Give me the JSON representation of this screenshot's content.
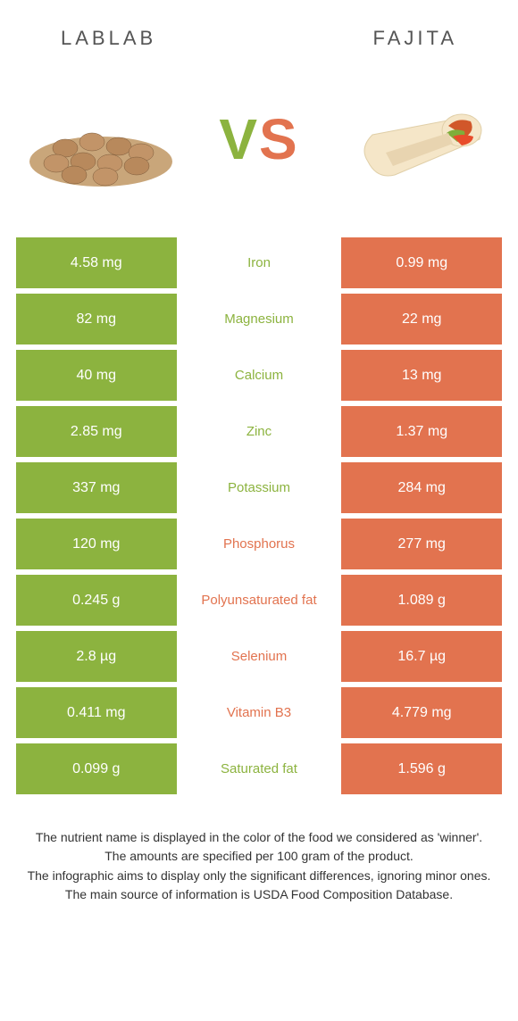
{
  "items": {
    "left": {
      "name": "Lablab"
    },
    "right": {
      "name": "Fajita"
    }
  },
  "colors": {
    "left": "#8cb33f",
    "right": "#e2734f",
    "text": "#555555"
  },
  "vs_label": "VS",
  "rows": [
    {
      "nutrient": "Iron",
      "left": "4.58 mg",
      "right": "0.99 mg",
      "winner": "left"
    },
    {
      "nutrient": "Magnesium",
      "left": "82 mg",
      "right": "22 mg",
      "winner": "left"
    },
    {
      "nutrient": "Calcium",
      "left": "40 mg",
      "right": "13 mg",
      "winner": "left"
    },
    {
      "nutrient": "Zinc",
      "left": "2.85 mg",
      "right": "1.37 mg",
      "winner": "left"
    },
    {
      "nutrient": "Potassium",
      "left": "337 mg",
      "right": "284 mg",
      "winner": "left"
    },
    {
      "nutrient": "Phosphorus",
      "left": "120 mg",
      "right": "277 mg",
      "winner": "right"
    },
    {
      "nutrient": "Polyunsaturated fat",
      "left": "0.245 g",
      "right": "1.089 g",
      "winner": "right"
    },
    {
      "nutrient": "Selenium",
      "left": "2.8 µg",
      "right": "16.7 µg",
      "winner": "right"
    },
    {
      "nutrient": "Vitamin B3",
      "left": "0.411 mg",
      "right": "4.779 mg",
      "winner": "right"
    },
    {
      "nutrient": "Saturated fat",
      "left": "0.099 g",
      "right": "1.596 g",
      "winner": "left"
    }
  ],
  "notes": [
    "The nutrient name is displayed in the color of the food we considered as 'winner'.",
    "The amounts are specified per 100 gram of the product.",
    "The infographic aims to display only the significant differences, ignoring minor ones.",
    "The main source of information is USDA Food Composition Database."
  ]
}
